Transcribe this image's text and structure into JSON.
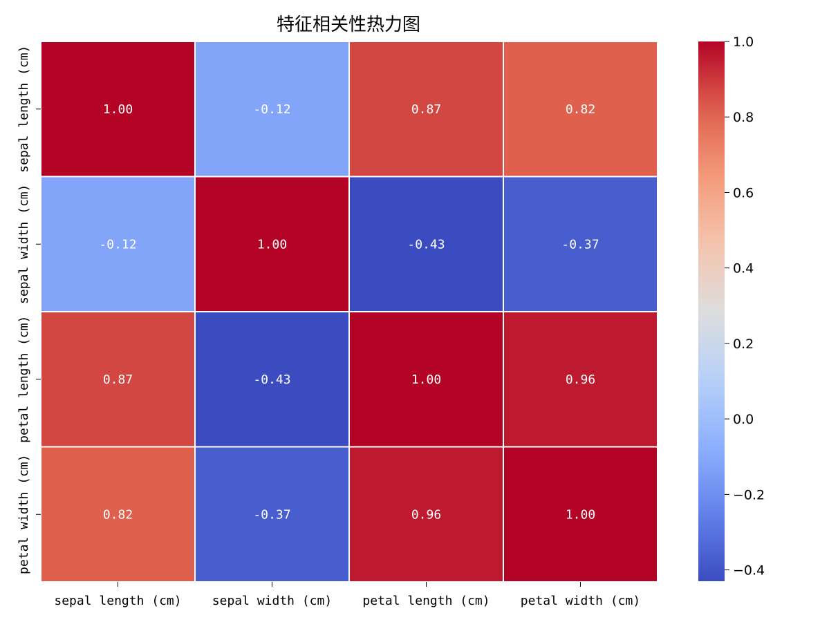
{
  "chart_data": {
    "type": "heatmap",
    "title": "特征相关性热力图",
    "x_categories": [
      "sepal length (cm)",
      "sepal width (cm)",
      "petal length (cm)",
      "petal width (cm)"
    ],
    "y_categories": [
      "sepal length (cm)",
      "sepal width (cm)",
      "petal length (cm)",
      "petal width (cm)"
    ],
    "values": [
      [
        1.0,
        -0.12,
        0.87,
        0.82
      ],
      [
        -0.12,
        1.0,
        -0.43,
        -0.37
      ],
      [
        0.87,
        -0.43,
        1.0,
        0.96
      ],
      [
        0.82,
        -0.37,
        0.96,
        1.0
      ]
    ],
    "cell_labels": [
      [
        "1.00",
        "-0.12",
        "0.87",
        "0.82"
      ],
      [
        "-0.12",
        "1.00",
        "-0.43",
        "-0.37"
      ],
      [
        "0.87",
        "-0.43",
        "1.00",
        "0.96"
      ],
      [
        "0.82",
        "-0.37",
        "0.96",
        "1.00"
      ]
    ],
    "colormap": "coolwarm",
    "vmin": -0.43,
    "vmax": 1.0,
    "colorbar": {
      "ticks": [
        1.0,
        0.8,
        0.6,
        0.4,
        0.2,
        0.0,
        -0.2,
        -0.4
      ],
      "tick_labels": [
        "1.0",
        "0.8",
        "0.6",
        "0.4",
        "0.2",
        "0.0",
        "−0.2",
        "−0.4"
      ]
    },
    "xlabel": "",
    "ylabel": ""
  }
}
